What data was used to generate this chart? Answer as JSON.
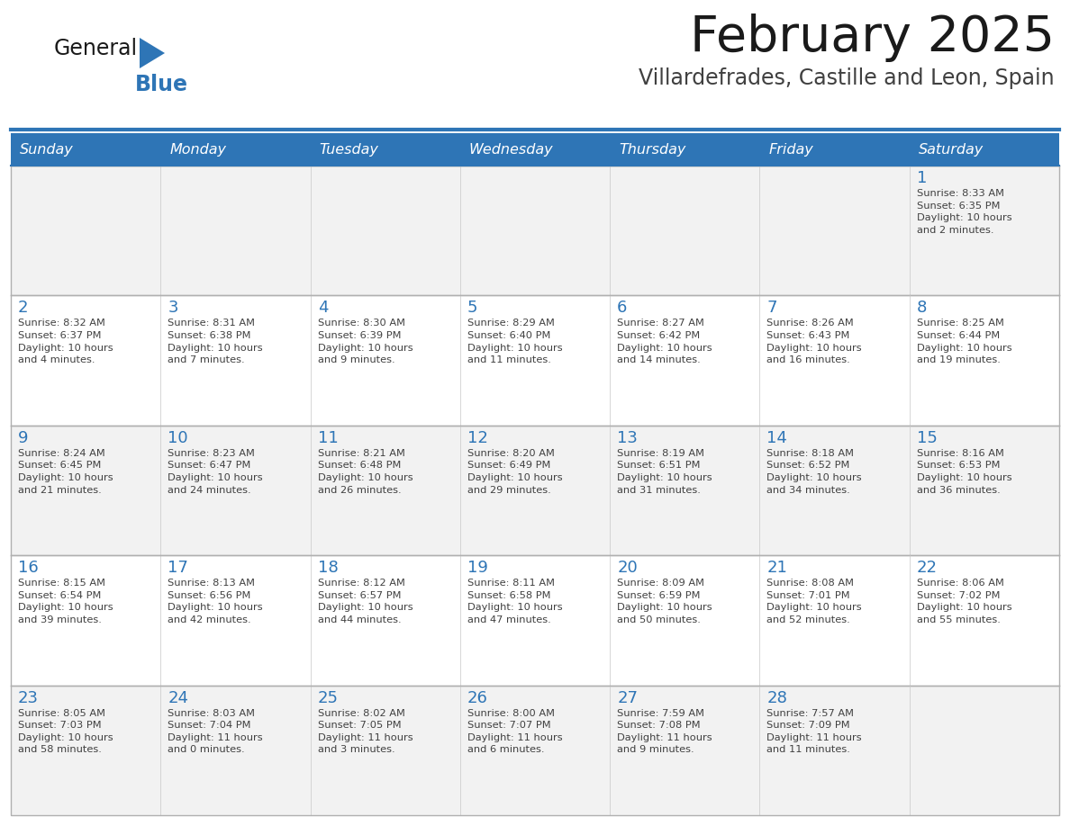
{
  "title": "February 2025",
  "subtitle": "Villardefrades, Castille and Leon, Spain",
  "header_color": "#2E75B6",
  "header_text_color": "#FFFFFF",
  "cell_bg_odd": "#F2F2F2",
  "cell_bg_even": "#FFFFFF",
  "day_headers": [
    "Sunday",
    "Monday",
    "Tuesday",
    "Wednesday",
    "Thursday",
    "Friday",
    "Saturday"
  ],
  "title_color": "#1A1A1A",
  "subtitle_color": "#404040",
  "day_number_color": "#2E75B6",
  "cell_text_color": "#404040",
  "logo_general_color": "#1A1A1A",
  "logo_blue_color": "#2E75B6",
  "logo_triangle_color": "#2E75B6",
  "weeks": [
    [
      {
        "day": null,
        "sunrise": null,
        "sunset": null,
        "daylight": null
      },
      {
        "day": null,
        "sunrise": null,
        "sunset": null,
        "daylight": null
      },
      {
        "day": null,
        "sunrise": null,
        "sunset": null,
        "daylight": null
      },
      {
        "day": null,
        "sunrise": null,
        "sunset": null,
        "daylight": null
      },
      {
        "day": null,
        "sunrise": null,
        "sunset": null,
        "daylight": null
      },
      {
        "day": null,
        "sunrise": null,
        "sunset": null,
        "daylight": null
      },
      {
        "day": 1,
        "sunrise": "8:33 AM",
        "sunset": "6:35 PM",
        "daylight": "10 hours\nand 2 minutes."
      }
    ],
    [
      {
        "day": 2,
        "sunrise": "8:32 AM",
        "sunset": "6:37 PM",
        "daylight": "10 hours\nand 4 minutes."
      },
      {
        "day": 3,
        "sunrise": "8:31 AM",
        "sunset": "6:38 PM",
        "daylight": "10 hours\nand 7 minutes."
      },
      {
        "day": 4,
        "sunrise": "8:30 AM",
        "sunset": "6:39 PM",
        "daylight": "10 hours\nand 9 minutes."
      },
      {
        "day": 5,
        "sunrise": "8:29 AM",
        "sunset": "6:40 PM",
        "daylight": "10 hours\nand 11 minutes."
      },
      {
        "day": 6,
        "sunrise": "8:27 AM",
        "sunset": "6:42 PM",
        "daylight": "10 hours\nand 14 minutes."
      },
      {
        "day": 7,
        "sunrise": "8:26 AM",
        "sunset": "6:43 PM",
        "daylight": "10 hours\nand 16 minutes."
      },
      {
        "day": 8,
        "sunrise": "8:25 AM",
        "sunset": "6:44 PM",
        "daylight": "10 hours\nand 19 minutes."
      }
    ],
    [
      {
        "day": 9,
        "sunrise": "8:24 AM",
        "sunset": "6:45 PM",
        "daylight": "10 hours\nand 21 minutes."
      },
      {
        "day": 10,
        "sunrise": "8:23 AM",
        "sunset": "6:47 PM",
        "daylight": "10 hours\nand 24 minutes."
      },
      {
        "day": 11,
        "sunrise": "8:21 AM",
        "sunset": "6:48 PM",
        "daylight": "10 hours\nand 26 minutes."
      },
      {
        "day": 12,
        "sunrise": "8:20 AM",
        "sunset": "6:49 PM",
        "daylight": "10 hours\nand 29 minutes."
      },
      {
        "day": 13,
        "sunrise": "8:19 AM",
        "sunset": "6:51 PM",
        "daylight": "10 hours\nand 31 minutes."
      },
      {
        "day": 14,
        "sunrise": "8:18 AM",
        "sunset": "6:52 PM",
        "daylight": "10 hours\nand 34 minutes."
      },
      {
        "day": 15,
        "sunrise": "8:16 AM",
        "sunset": "6:53 PM",
        "daylight": "10 hours\nand 36 minutes."
      }
    ],
    [
      {
        "day": 16,
        "sunrise": "8:15 AM",
        "sunset": "6:54 PM",
        "daylight": "10 hours\nand 39 minutes."
      },
      {
        "day": 17,
        "sunrise": "8:13 AM",
        "sunset": "6:56 PM",
        "daylight": "10 hours\nand 42 minutes."
      },
      {
        "day": 18,
        "sunrise": "8:12 AM",
        "sunset": "6:57 PM",
        "daylight": "10 hours\nand 44 minutes."
      },
      {
        "day": 19,
        "sunrise": "8:11 AM",
        "sunset": "6:58 PM",
        "daylight": "10 hours\nand 47 minutes."
      },
      {
        "day": 20,
        "sunrise": "8:09 AM",
        "sunset": "6:59 PM",
        "daylight": "10 hours\nand 50 minutes."
      },
      {
        "day": 21,
        "sunrise": "8:08 AM",
        "sunset": "7:01 PM",
        "daylight": "10 hours\nand 52 minutes."
      },
      {
        "day": 22,
        "sunrise": "8:06 AM",
        "sunset": "7:02 PM",
        "daylight": "10 hours\nand 55 minutes."
      }
    ],
    [
      {
        "day": 23,
        "sunrise": "8:05 AM",
        "sunset": "7:03 PM",
        "daylight": "10 hours\nand 58 minutes."
      },
      {
        "day": 24,
        "sunrise": "8:03 AM",
        "sunset": "7:04 PM",
        "daylight": "11 hours\nand 0 minutes."
      },
      {
        "day": 25,
        "sunrise": "8:02 AM",
        "sunset": "7:05 PM",
        "daylight": "11 hours\nand 3 minutes."
      },
      {
        "day": 26,
        "sunrise": "8:00 AM",
        "sunset": "7:07 PM",
        "daylight": "11 hours\nand 6 minutes."
      },
      {
        "day": 27,
        "sunrise": "7:59 AM",
        "sunset": "7:08 PM",
        "daylight": "11 hours\nand 9 minutes."
      },
      {
        "day": 28,
        "sunrise": "7:57 AM",
        "sunset": "7:09 PM",
        "daylight": "11 hours\nand 11 minutes."
      },
      {
        "day": null,
        "sunrise": null,
        "sunset": null,
        "daylight": null
      }
    ]
  ]
}
